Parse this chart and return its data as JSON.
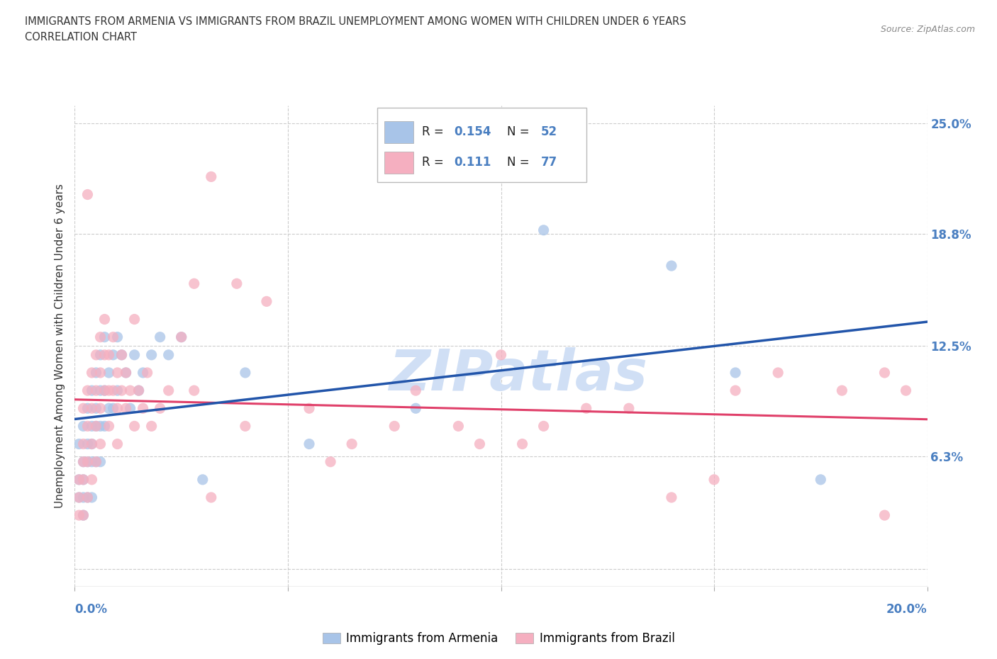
{
  "title_line1": "IMMIGRANTS FROM ARMENIA VS IMMIGRANTS FROM BRAZIL UNEMPLOYMENT AMONG WOMEN WITH CHILDREN UNDER 6 YEARS",
  "title_line2": "CORRELATION CHART",
  "source_text": "Source: ZipAtlas.com",
  "ylabel": "Unemployment Among Women with Children Under 6 years",
  "armenia_R": 0.154,
  "armenia_N": 52,
  "brazil_R": 0.111,
  "brazil_N": 77,
  "armenia_color": "#a8c4e8",
  "brazil_color": "#f5afc0",
  "armenia_line_color": "#2255aa",
  "brazil_line_color": "#e0406a",
  "background_color": "#ffffff",
  "grid_color": "#cccccc",
  "watermark_color": "#d0dff5",
  "xmin": 0.0,
  "xmax": 0.2,
  "ymin": -0.01,
  "ymax": 0.26,
  "legend_label1": "Immigrants from Armenia",
  "legend_label2": "Immigrants from Brazil",
  "armenia_x": [
    0.001,
    0.001,
    0.001,
    0.002,
    0.002,
    0.002,
    0.002,
    0.002,
    0.003,
    0.003,
    0.003,
    0.003,
    0.004,
    0.004,
    0.004,
    0.004,
    0.004,
    0.005,
    0.005,
    0.005,
    0.005,
    0.006,
    0.006,
    0.006,
    0.006,
    0.007,
    0.007,
    0.007,
    0.008,
    0.008,
    0.009,
    0.009,
    0.01,
    0.01,
    0.011,
    0.012,
    0.013,
    0.014,
    0.015,
    0.016,
    0.018,
    0.02,
    0.022,
    0.025,
    0.03,
    0.04,
    0.055,
    0.08,
    0.11,
    0.14,
    0.155,
    0.175
  ],
  "armenia_y": [
    0.07,
    0.05,
    0.04,
    0.08,
    0.06,
    0.05,
    0.04,
    0.03,
    0.09,
    0.07,
    0.06,
    0.04,
    0.1,
    0.08,
    0.07,
    0.06,
    0.04,
    0.11,
    0.09,
    0.08,
    0.06,
    0.12,
    0.1,
    0.08,
    0.06,
    0.13,
    0.1,
    0.08,
    0.11,
    0.09,
    0.12,
    0.09,
    0.13,
    0.1,
    0.12,
    0.11,
    0.09,
    0.12,
    0.1,
    0.11,
    0.12,
    0.13,
    0.12,
    0.13,
    0.05,
    0.11,
    0.07,
    0.09,
    0.19,
    0.17,
    0.11,
    0.05
  ],
  "brazil_x": [
    0.001,
    0.001,
    0.001,
    0.002,
    0.002,
    0.002,
    0.002,
    0.002,
    0.003,
    0.003,
    0.003,
    0.003,
    0.004,
    0.004,
    0.004,
    0.004,
    0.005,
    0.005,
    0.005,
    0.005,
    0.006,
    0.006,
    0.006,
    0.006,
    0.007,
    0.007,
    0.007,
    0.008,
    0.008,
    0.008,
    0.009,
    0.009,
    0.01,
    0.01,
    0.01,
    0.011,
    0.011,
    0.012,
    0.012,
    0.013,
    0.014,
    0.015,
    0.016,
    0.017,
    0.018,
    0.02,
    0.022,
    0.025,
    0.028,
    0.032,
    0.038,
    0.045,
    0.055,
    0.065,
    0.08,
    0.095,
    0.11,
    0.13,
    0.15,
    0.165,
    0.18,
    0.19,
    0.195,
    0.003,
    0.014,
    0.028,
    0.04,
    0.06,
    0.075,
    0.09,
    0.105,
    0.14,
    0.155,
    0.032,
    0.19,
    0.1,
    0.12
  ],
  "brazil_y": [
    0.05,
    0.04,
    0.03,
    0.09,
    0.07,
    0.06,
    0.05,
    0.03,
    0.1,
    0.08,
    0.06,
    0.04,
    0.11,
    0.09,
    0.07,
    0.05,
    0.12,
    0.1,
    0.08,
    0.06,
    0.13,
    0.11,
    0.09,
    0.07,
    0.14,
    0.12,
    0.1,
    0.12,
    0.1,
    0.08,
    0.13,
    0.1,
    0.11,
    0.09,
    0.07,
    0.12,
    0.1,
    0.11,
    0.09,
    0.1,
    0.08,
    0.1,
    0.09,
    0.11,
    0.08,
    0.09,
    0.1,
    0.13,
    0.1,
    0.22,
    0.16,
    0.15,
    0.09,
    0.07,
    0.1,
    0.07,
    0.08,
    0.09,
    0.05,
    0.11,
    0.1,
    0.11,
    0.1,
    0.21,
    0.14,
    0.16,
    0.08,
    0.06,
    0.08,
    0.08,
    0.07,
    0.04,
    0.1,
    0.04,
    0.03,
    0.12,
    0.09
  ]
}
